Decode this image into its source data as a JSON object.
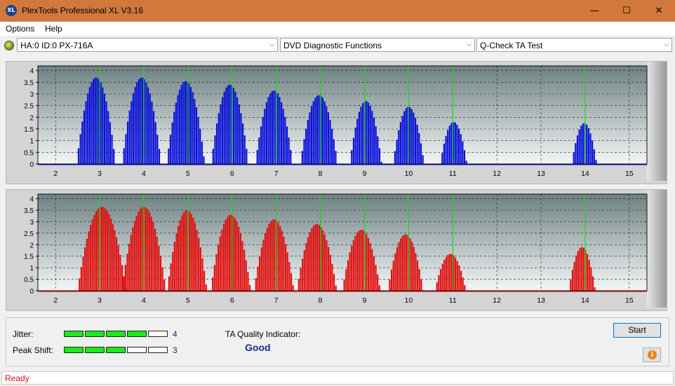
{
  "window": {
    "title": "PlexTools Professional XL V3.16",
    "icon_label": "XL",
    "minimize": "—",
    "maximize": "☐",
    "close": "✕"
  },
  "menu": [
    "Options",
    "Help"
  ],
  "toolbar": {
    "drive": "HA:0 ID:0  PX-716A",
    "function": "DVD Diagnostic Functions",
    "test": "Q-Check TA Test",
    "arrow": "⌵"
  },
  "colors": {
    "top_bars": "#0a10d8",
    "bottom_bars": "#e01010",
    "marker": "#10e010",
    "plot_bg_top": "#6e8082",
    "plot_bg_bottom": "#f4f6f6"
  },
  "chart_data": [
    {
      "type": "bar",
      "x_ticks": [
        2,
        3,
        4,
        5,
        6,
        7,
        8,
        9,
        10,
        11,
        12,
        13,
        14,
        15
      ],
      "y_ticks": [
        "4",
        "3.5",
        "3",
        "2.5",
        "2",
        "1.5",
        "1",
        "0.5",
        "0"
      ],
      "xlim": [
        1.6,
        15.4
      ],
      "ylim": [
        0,
        4.2
      ],
      "markers": [
        3,
        4,
        5,
        6,
        7,
        8,
        9,
        10,
        11,
        14
      ],
      "grid": true,
      "bumps": [
        {
          "center": 2.92,
          "width": 0.44,
          "peak": 3.7
        },
        {
          "center": 3.95,
          "width": 0.44,
          "peak": 3.7
        },
        {
          "center": 4.95,
          "width": 0.43,
          "peak": 3.55
        },
        {
          "center": 5.95,
          "width": 0.42,
          "peak": 3.4
        },
        {
          "center": 6.95,
          "width": 0.42,
          "peak": 3.15
        },
        {
          "center": 7.97,
          "width": 0.42,
          "peak": 2.95
        },
        {
          "center": 9.03,
          "width": 0.36,
          "peak": 2.7
        },
        {
          "center": 10.0,
          "width": 0.35,
          "peak": 2.45
        },
        {
          "center": 11.02,
          "width": 0.3,
          "peak": 1.8
        },
        {
          "center": 13.98,
          "width": 0.28,
          "peak": 1.75
        }
      ]
    },
    {
      "type": "bar",
      "x_ticks": [
        2,
        3,
        4,
        5,
        6,
        7,
        8,
        9,
        10,
        11,
        12,
        13,
        14,
        15
      ],
      "y_ticks": [
        "4",
        "3.5",
        "3",
        "2.5",
        "2",
        "1.5",
        "1",
        "0.5",
        "0"
      ],
      "xlim": [
        1.6,
        15.4
      ],
      "ylim": [
        0,
        4.2
      ],
      "markers": [
        3,
        4,
        5,
        6,
        7,
        8,
        9,
        10,
        11,
        14
      ],
      "grid": true,
      "bumps": [
        {
          "center": 3.05,
          "width": 0.55,
          "peak": 3.65
        },
        {
          "center": 4.0,
          "width": 0.5,
          "peak": 3.65
        },
        {
          "center": 4.98,
          "width": 0.45,
          "peak": 3.5
        },
        {
          "center": 5.97,
          "width": 0.45,
          "peak": 3.3
        },
        {
          "center": 6.95,
          "width": 0.45,
          "peak": 3.1
        },
        {
          "center": 7.92,
          "width": 0.45,
          "peak": 2.9
        },
        {
          "center": 8.93,
          "width": 0.43,
          "peak": 2.65
        },
        {
          "center": 9.93,
          "width": 0.4,
          "peak": 2.45
        },
        {
          "center": 10.95,
          "width": 0.35,
          "peak": 1.6
        },
        {
          "center": 13.93,
          "width": 0.3,
          "peak": 1.9
        }
      ]
    }
  ],
  "results": {
    "jitter_label": "Jitter:",
    "jitter_value": "4",
    "jitter_level": 4,
    "peak_label": "Peak Shift:",
    "peak_value": "3",
    "peak_level": 3,
    "ta_label": "TA Quality Indicator:",
    "ta_value": "Good",
    "start_button": "Start",
    "info_glyph": "i"
  },
  "status": "Ready"
}
